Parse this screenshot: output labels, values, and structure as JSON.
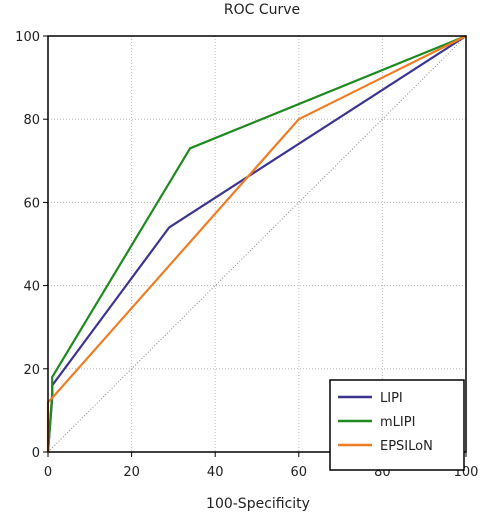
{
  "chart_data": {
    "type": "line",
    "title": "ROC Curve",
    "xlabel": "100-Specificity",
    "ylabel": "",
    "xlim": [
      0,
      100
    ],
    "ylim": [
      0,
      100
    ],
    "xticks": [
      "0",
      "20",
      "40",
      "60",
      "80",
      "100"
    ],
    "yticks": [
      "0",
      "20",
      "40",
      "60",
      "80",
      "100"
    ],
    "grid": true,
    "reference_line": true,
    "legend_position": "bottom-right",
    "series": [
      {
        "name": "LIPI",
        "color": "#3b3591",
        "points": [
          [
            0,
            0
          ],
          [
            1,
            13
          ],
          [
            1,
            16
          ],
          [
            29,
            54
          ],
          [
            100,
            100
          ]
        ]
      },
      {
        "name": "mLIPI",
        "color": "#1f8a1f",
        "points": [
          [
            0,
            0
          ],
          [
            1,
            14
          ],
          [
            1,
            18
          ],
          [
            34,
            73
          ],
          [
            100,
            100
          ]
        ]
      },
      {
        "name": "EPSILoN",
        "color": "#ef7d24",
        "points": [
          [
            0,
            0
          ],
          [
            0,
            12
          ],
          [
            1,
            13
          ],
          [
            60,
            80
          ],
          [
            100,
            100
          ]
        ]
      }
    ]
  }
}
